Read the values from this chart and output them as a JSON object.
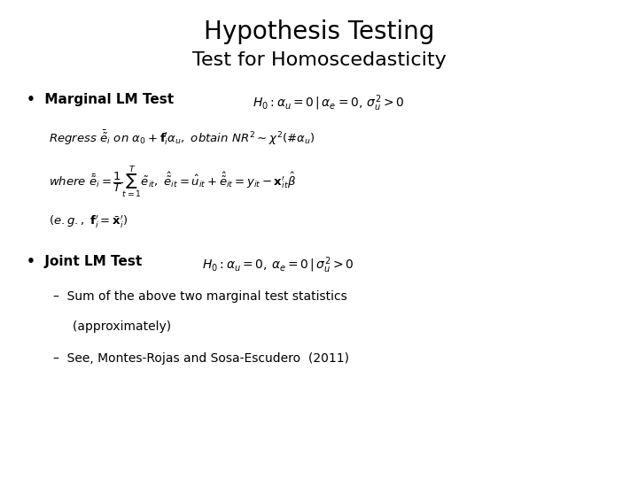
{
  "title": "Hypothesis Testing",
  "subtitle": "Test for Homoscedasticity",
  "title_fontsize": 20,
  "subtitle_fontsize": 16,
  "background_color": "#ffffff",
  "text_color": "#000000",
  "bullet1_label": "•  Marginal LM Test",
  "bullet2_label": "•  Joint LM Test",
  "sub1": "–  Sum of the above two marginal test statistics",
  "sub1b": "     (approximately)",
  "sub2": "–  See, Montes-Rojas and Sosa-Escudero  (2011)"
}
